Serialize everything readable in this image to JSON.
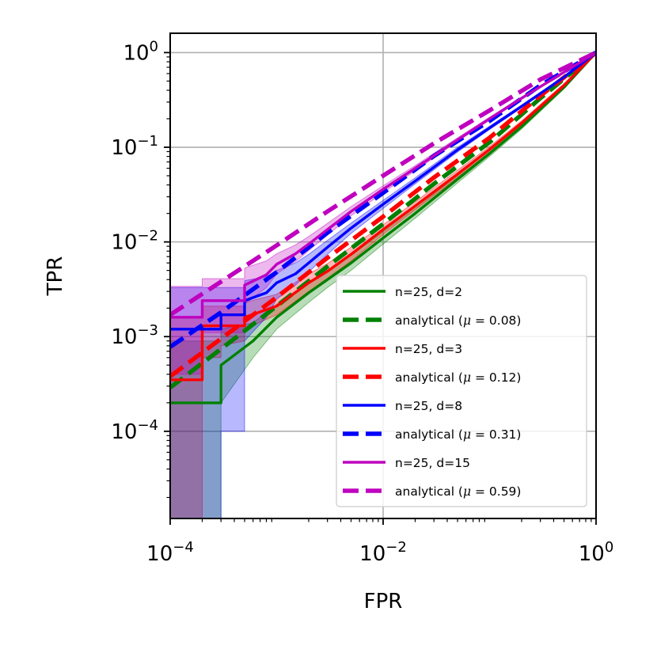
{
  "chart_data": {
    "type": "line",
    "xlabel": "FPR",
    "ylabel": "TPR",
    "xscale": "log",
    "yscale": "log",
    "xlim": [
      0.0001,
      1
    ],
    "ylim": [
      1.2e-05,
      1.6
    ],
    "grid": true,
    "legend_position": "lower-right",
    "x_ticks": [
      {
        "value": 0.0001,
        "base": "10",
        "exp": "−4"
      },
      {
        "value": 0.01,
        "base": "10",
        "exp": "−2"
      },
      {
        "value": 1,
        "base": "10",
        "exp": "0"
      }
    ],
    "y_ticks": [
      {
        "value": 1,
        "base": "10",
        "exp": "0"
      },
      {
        "value": 0.1,
        "base": "10",
        "exp": "−1"
      },
      {
        "value": 0.01,
        "base": "10",
        "exp": "−2"
      },
      {
        "value": 0.001,
        "base": "10",
        "exp": "−3"
      },
      {
        "value": 0.0001,
        "base": "10",
        "exp": "−4"
      }
    ],
    "series": [
      {
        "name": "n=25, d=2",
        "color": "#008000",
        "style": "solid",
        "band": true,
        "x": [
          0.0001,
          0.0003,
          0.0003,
          0.0006,
          0.001,
          0.002,
          0.003,
          0.005,
          0.01,
          0.02,
          0.05,
          0.1,
          0.2,
          0.5,
          1
        ],
        "y": [
          0.0002,
          0.0002,
          0.0005,
          0.0009,
          0.0016,
          0.0029,
          0.004,
          0.006,
          0.011,
          0.02,
          0.046,
          0.086,
          0.165,
          0.43,
          1
        ],
        "lower": [
          1e-05,
          1e-05,
          0.0002,
          0.0006,
          0.0012,
          0.0023,
          0.0033,
          0.005,
          0.0095,
          0.0178,
          0.042,
          0.08,
          0.156,
          0.415,
          1
        ],
        "upper": [
          0.0009,
          0.0009,
          0.0012,
          0.0014,
          0.0022,
          0.0037,
          0.0049,
          0.0072,
          0.0128,
          0.0225,
          0.05,
          0.093,
          0.175,
          0.445,
          1
        ]
      },
      {
        "name": "analytical (μ = 0.08)",
        "color": "#008000",
        "style": "dashed",
        "band": false,
        "x": [
          0.0001,
          0.0003,
          0.001,
          0.003,
          0.01,
          0.03,
          0.1,
          0.3,
          1
        ],
        "y": [
          0.00029,
          0.00074,
          0.0021,
          0.0055,
          0.0155,
          0.041,
          0.113,
          0.33,
          1
        ]
      },
      {
        "name": "n=25, d=3",
        "color": "#ff0000",
        "style": "solid",
        "band": true,
        "x": [
          0.0001,
          0.0002,
          0.0002,
          0.0003,
          0.0003,
          0.0005,
          0.0005,
          0.001,
          0.002,
          0.003,
          0.005,
          0.01,
          0.02,
          0.05,
          0.1,
          0.2,
          0.5,
          1
        ],
        "y": [
          0.00035,
          0.00035,
          0.0013,
          0.0013,
          0.0013,
          0.0013,
          0.0016,
          0.0021,
          0.0037,
          0.0049,
          0.0074,
          0.0135,
          0.024,
          0.052,
          0.095,
          0.18,
          0.45,
          1
        ],
        "lower": [
          1e-05,
          1e-05,
          0.0006,
          0.0006,
          0.0008,
          0.0009,
          0.0012,
          0.0017,
          0.003,
          0.0041,
          0.0063,
          0.012,
          0.0218,
          0.048,
          0.089,
          0.17,
          0.43,
          1
        ],
        "upper": [
          0.0016,
          0.0016,
          0.0021,
          0.0021,
          0.0021,
          0.0021,
          0.0023,
          0.0028,
          0.0046,
          0.0059,
          0.0088,
          0.0152,
          0.0265,
          0.057,
          0.102,
          0.19,
          0.47,
          1
        ]
      },
      {
        "name": "analytical (μ = 0.12)",
        "color": "#ff0000",
        "style": "dashed",
        "band": false,
        "x": [
          0.0001,
          0.0003,
          0.001,
          0.003,
          0.01,
          0.03,
          0.1,
          0.3,
          1
        ],
        "y": [
          0.00038,
          0.00095,
          0.0026,
          0.0068,
          0.0185,
          0.048,
          0.126,
          0.35,
          1
        ]
      },
      {
        "name": "n=25, d=8",
        "color": "#0000ff",
        "style": "solid",
        "band": true,
        "x": [
          0.0001,
          0.0003,
          0.0003,
          0.0005,
          0.0005,
          0.0008,
          0.001,
          0.0015,
          0.002,
          0.003,
          0.005,
          0.01,
          0.02,
          0.05,
          0.1,
          0.2,
          0.5,
          1
        ],
        "y": [
          0.0012,
          0.0012,
          0.0017,
          0.0017,
          0.0024,
          0.0029,
          0.0037,
          0.0046,
          0.006,
          0.0088,
          0.014,
          0.025,
          0.044,
          0.094,
          0.16,
          0.27,
          0.55,
          1
        ],
        "lower": [
          1e-05,
          1e-05,
          0.0001,
          0.0001,
          0.0009,
          0.0016,
          0.0025,
          0.0035,
          0.0048,
          0.0074,
          0.0123,
          0.0226,
          0.041,
          0.089,
          0.154,
          0.262,
          0.54,
          1
        ],
        "upper": [
          0.0033,
          0.0033,
          0.0033,
          0.0033,
          0.0039,
          0.0043,
          0.005,
          0.006,
          0.0074,
          0.0104,
          0.0158,
          0.0275,
          0.0475,
          0.1,
          0.167,
          0.28,
          0.56,
          1
        ]
      },
      {
        "name": "analytical (μ = 0.31)",
        "color": "#0000ff",
        "style": "dashed",
        "band": false,
        "x": [
          0.0001,
          0.0003,
          0.001,
          0.003,
          0.01,
          0.03,
          0.1,
          0.3,
          1
        ],
        "y": [
          0.00078,
          0.0018,
          0.0048,
          0.0125,
          0.033,
          0.081,
          0.19,
          0.45,
          1
        ]
      },
      {
        "name": "n=25, d=15",
        "color": "#bf00bf",
        "style": "solid",
        "band": true,
        "x": [
          0.0001,
          0.0002,
          0.0002,
          0.0005,
          0.0005,
          0.0008,
          0.001,
          0.0015,
          0.002,
          0.003,
          0.005,
          0.01,
          0.02,
          0.05,
          0.1,
          0.2,
          0.5,
          1
        ],
        "y": [
          0.0016,
          0.0016,
          0.0024,
          0.0024,
          0.0035,
          0.0045,
          0.0058,
          0.0075,
          0.0095,
          0.0135,
          0.021,
          0.036,
          0.06,
          0.12,
          0.2,
          0.33,
          0.62,
          1
        ],
        "lower": [
          0.0004,
          0.0004,
          0.0011,
          0.0011,
          0.0022,
          0.0033,
          0.0046,
          0.0062,
          0.0081,
          0.0118,
          0.0189,
          0.0332,
          0.0565,
          0.115,
          0.193,
          0.32,
          0.61,
          1
        ],
        "upper": [
          0.0034,
          0.0034,
          0.0041,
          0.0041,
          0.0053,
          0.0063,
          0.0075,
          0.0093,
          0.0114,
          0.0157,
          0.0236,
          0.0392,
          0.064,
          0.126,
          0.208,
          0.34,
          0.63,
          1
        ]
      },
      {
        "name": "analytical (μ = 0.59)",
        "color": "#bf00bf",
        "style": "dashed",
        "band": false,
        "x": [
          0.0001,
          0.0003,
          0.001,
          0.003,
          0.01,
          0.03,
          0.1,
          0.3,
          1
        ],
        "y": [
          0.0017,
          0.0038,
          0.0092,
          0.021,
          0.05,
          0.11,
          0.245,
          0.52,
          1
        ]
      }
    ]
  },
  "legend": {
    "items": [
      {
        "label": "n=25, d=2",
        "color": "#008000",
        "style": "solid"
      },
      {
        "label_prefix": "analytical (",
        "mu": "μ",
        "label_eq": " = 0.08)",
        "color": "#008000",
        "style": "dashed"
      },
      {
        "label": "n=25, d=3",
        "color": "#ff0000",
        "style": "solid"
      },
      {
        "label_prefix": "analytical (",
        "mu": "μ",
        "label_eq": " = 0.12)",
        "color": "#ff0000",
        "style": "dashed"
      },
      {
        "label": "n=25, d=8",
        "color": "#0000ff",
        "style": "solid"
      },
      {
        "label_prefix": "analytical (",
        "mu": "μ",
        "label_eq": " = 0.31)",
        "color": "#0000ff",
        "style": "dashed"
      },
      {
        "label": "n=25, d=15",
        "color": "#bf00bf",
        "style": "solid"
      },
      {
        "label_prefix": "analytical (",
        "mu": "μ",
        "label_eq": " = 0.59)",
        "color": "#bf00bf",
        "style": "dashed"
      }
    ]
  }
}
